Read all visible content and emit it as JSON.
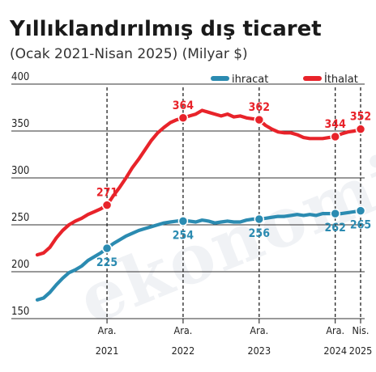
{
  "colors": {
    "export": "#2b8bb1",
    "import": "#e8232a",
    "grid": "#333333",
    "text": "#1a1a1a"
  },
  "watermark": "ekonomi",
  "chart_data": {
    "type": "line",
    "title": "Yıllıklandırılmış dış ticaret",
    "subtitle": "(Ocak 2021-Nisan 2025) (Milyar $)",
    "ylim": [
      150,
      400
    ],
    "yticks": [
      400,
      350,
      300,
      250,
      200,
      150
    ],
    "grid": "horizontal",
    "legend_position": "top-right",
    "x_start": "2021-01",
    "x_end": "2025-04",
    "xticks": [
      {
        "month": "Ara.",
        "year": "2021",
        "x": "2021-12"
      },
      {
        "month": "Ara.",
        "year": "2022",
        "x": "2022-12"
      },
      {
        "month": "Ara.",
        "year": "2023",
        "x": "2023-12"
      },
      {
        "month": "Ara.",
        "year": "2024",
        "x": "2024-12"
      },
      {
        "month": "Nis.",
        "year": "2025",
        "x": "2025-04"
      }
    ],
    "x": [
      "2021-01",
      "2021-02",
      "2021-03",
      "2021-04",
      "2021-05",
      "2021-06",
      "2021-07",
      "2021-08",
      "2021-09",
      "2021-10",
      "2021-11",
      "2021-12",
      "2022-01",
      "2022-02",
      "2022-03",
      "2022-04",
      "2022-05",
      "2022-06",
      "2022-07",
      "2022-08",
      "2022-09",
      "2022-10",
      "2022-11",
      "2022-12",
      "2023-01",
      "2023-02",
      "2023-03",
      "2023-04",
      "2023-05",
      "2023-06",
      "2023-07",
      "2023-08",
      "2023-09",
      "2023-10",
      "2023-11",
      "2023-12",
      "2024-01",
      "2024-02",
      "2024-03",
      "2024-04",
      "2024-05",
      "2024-06",
      "2024-07",
      "2024-08",
      "2024-09",
      "2024-10",
      "2024-11",
      "2024-12",
      "2025-01",
      "2025-02",
      "2025-03",
      "2025-04"
    ],
    "series": [
      {
        "name": "ihracat",
        "color": "#2b8bb1",
        "values": [
          170,
          172,
          178,
          186,
          193,
          199,
          202,
          206,
          212,
          216,
          220,
          225,
          230,
          234,
          238,
          241,
          244,
          246,
          248,
          250,
          252,
          253,
          254,
          254,
          254,
          253,
          255,
          254,
          252,
          253,
          254,
          253,
          253,
          255,
          256,
          256,
          257,
          258,
          259,
          259,
          260,
          261,
          260,
          261,
          260,
          262,
          262,
          262,
          262,
          263,
          264,
          265
        ],
        "labels": [
          {
            "x": "2021-12",
            "value": 225,
            "text": "225"
          },
          {
            "x": "2022-12",
            "value": 254,
            "text": "254"
          },
          {
            "x": "2023-12",
            "value": 256,
            "text": "256"
          },
          {
            "x": "2024-12",
            "value": 262,
            "text": "262"
          },
          {
            "x": "2025-04",
            "value": 265,
            "text": "265"
          }
        ]
      },
      {
        "name": "İthalat",
        "color": "#e8232a",
        "values": [
          218,
          220,
          226,
          236,
          244,
          250,
          254,
          257,
          261,
          264,
          267,
          271,
          281,
          290,
          300,
          311,
          320,
          330,
          340,
          348,
          354,
          359,
          362,
          364,
          366,
          368,
          372,
          370,
          368,
          366,
          368,
          365,
          366,
          364,
          363,
          362,
          356,
          352,
          349,
          348,
          348,
          346,
          343,
          342,
          342,
          342,
          343,
          344,
          347,
          349,
          350,
          352
        ],
        "labels": [
          {
            "x": "2021-12",
            "value": 271,
            "text": "271"
          },
          {
            "x": "2022-12",
            "value": 364,
            "text": "364"
          },
          {
            "x": "2023-12",
            "value": 362,
            "text": "362"
          },
          {
            "x": "2024-12",
            "value": 344,
            "text": "344"
          },
          {
            "x": "2025-04",
            "value": 352,
            "text": "352"
          }
        ]
      }
    ]
  }
}
